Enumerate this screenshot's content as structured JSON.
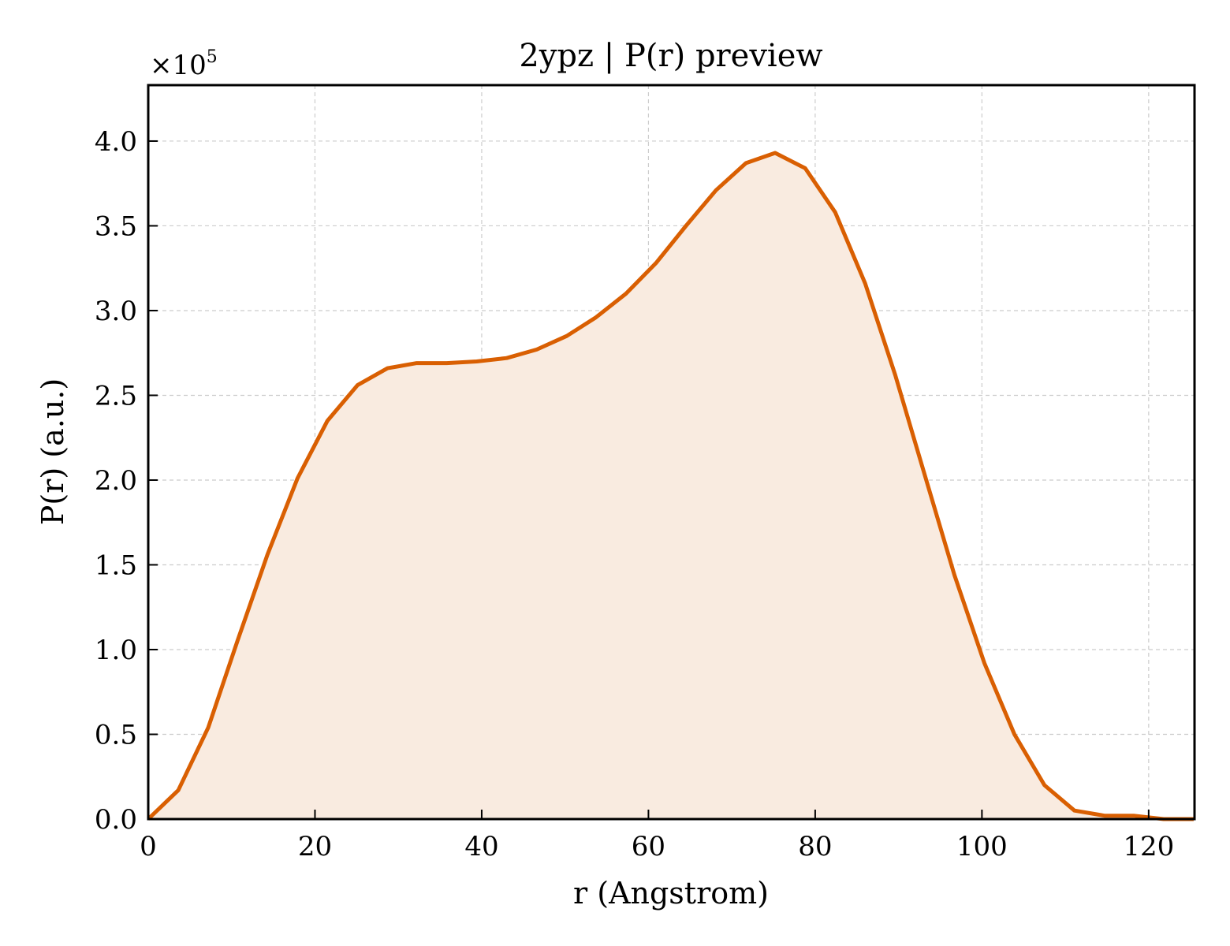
{
  "chart_data": {
    "type": "area",
    "title": "2ypz | P(r) preview",
    "xlabel": "r (Angstrom)",
    "ylabel": "P(r) (a.u.)",
    "y_scale_label": "×10",
    "y_scale_exponent": "5",
    "y_multiplier": 100000,
    "xlim": [
      0,
      125.5
    ],
    "ylim": [
      0,
      4.33
    ],
    "xticks": [
      0,
      20,
      40,
      60,
      80,
      100,
      120
    ],
    "xtick_labels": [
      "0",
      "20",
      "40",
      "60",
      "80",
      "100",
      "120"
    ],
    "yticks": [
      0,
      0.5,
      1.0,
      1.5,
      2.0,
      2.5,
      3.0,
      3.5,
      4.0
    ],
    "ytick_labels": [
      "0.0",
      "0.5",
      "1.0",
      "1.5",
      "2.0",
      "2.5",
      "3.0",
      "3.5",
      "4.0"
    ],
    "grid": true,
    "line_color": "#d95f02",
    "fill_color": "#f9ebe0",
    "series": [
      {
        "x": [
          0,
          3.6,
          7.2,
          10.7,
          14.3,
          17.9,
          21.5,
          25.1,
          28.7,
          32.2,
          35.8,
          39.4,
          43.0,
          46.6,
          50.2,
          53.7,
          57.3,
          60.9,
          64.5,
          68.1,
          71.7,
          75.2,
          78.8,
          82.4,
          86.0,
          89.6,
          93.2,
          96.7,
          100.3,
          103.9,
          107.5,
          111.1,
          114.7,
          118.2,
          121.8,
          125.4
        ],
        "y": [
          0.0,
          0.17,
          0.54,
          1.05,
          1.56,
          2.01,
          2.35,
          2.56,
          2.66,
          2.69,
          2.69,
          2.7,
          2.72,
          2.77,
          2.85,
          2.96,
          3.1,
          3.28,
          3.5,
          3.71,
          3.87,
          3.93,
          3.84,
          3.58,
          3.16,
          2.62,
          2.02,
          1.44,
          0.92,
          0.5,
          0.2,
          0.05,
          0.02,
          0.02,
          0.0,
          0.0
        ]
      }
    ]
  }
}
